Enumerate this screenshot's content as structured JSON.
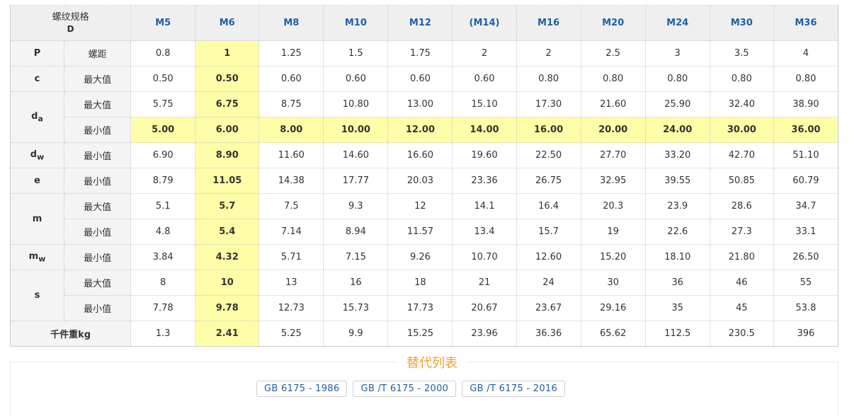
{
  "header": {
    "corner_top": "螺纹规格",
    "corner_bottom": "D",
    "sizes": [
      "M5",
      "M6",
      "M8",
      "M10",
      "M12",
      "(M14)",
      "M16",
      "M20",
      "M24",
      "M30",
      "M36"
    ]
  },
  "rows": [
    {
      "sym": "P",
      "sub": "",
      "label": "螺距",
      "values": [
        "0.8",
        "1",
        "1.25",
        "1.5",
        "1.75",
        "2",
        "2",
        "2.5",
        "3",
        "3.5",
        "4"
      ]
    },
    {
      "sym": "c",
      "sub": "",
      "label": "最大值",
      "values": [
        "0.50",
        "0.50",
        "0.60",
        "0.60",
        "0.60",
        "0.60",
        "0.80",
        "0.80",
        "0.80",
        "0.80",
        "0.80"
      ]
    },
    {
      "sym": "d",
      "sub": "a",
      "label": "最大值",
      "values": [
        "5.75",
        "6.75",
        "8.75",
        "10.80",
        "13.00",
        "15.10",
        "17.30",
        "21.60",
        "25.90",
        "32.40",
        "38.90"
      ]
    },
    {
      "sym": "",
      "sub": "",
      "label": "最小值",
      "values": [
        "5.00",
        "6.00",
        "8.00",
        "10.00",
        "12.00",
        "14.00",
        "16.00",
        "20.00",
        "24.00",
        "30.00",
        "36.00"
      ]
    },
    {
      "sym": "d",
      "sub": "w",
      "label": "最小值",
      "values": [
        "6.90",
        "8.90",
        "11.60",
        "14.60",
        "16.60",
        "19.60",
        "22.50",
        "27.70",
        "33.20",
        "42.70",
        "51.10"
      ]
    },
    {
      "sym": "e",
      "sub": "",
      "label": "最小值",
      "values": [
        "8.79",
        "11.05",
        "14.38",
        "17.77",
        "20.03",
        "23.36",
        "26.75",
        "32.95",
        "39.55",
        "50.85",
        "60.79"
      ]
    },
    {
      "sym": "m",
      "sub": "",
      "label": "最大值",
      "values": [
        "5.1",
        "5.7",
        "7.5",
        "9.3",
        "12",
        "14.1",
        "16.4",
        "20.3",
        "23.9",
        "28.6",
        "34.7"
      ]
    },
    {
      "sym": "",
      "sub": "",
      "label": "最小值",
      "values": [
        "4.8",
        "5.4",
        "7.14",
        "8.94",
        "11.57",
        "13.4",
        "15.7",
        "19",
        "22.6",
        "27.3",
        "33.1"
      ]
    },
    {
      "sym": "m",
      "sub": "w",
      "label": "最小值",
      "values": [
        "3.84",
        "4.32",
        "5.71",
        "7.15",
        "9.26",
        "10.70",
        "12.60",
        "15.20",
        "18.10",
        "21.80",
        "26.50"
      ]
    },
    {
      "sym": "s",
      "sub": "",
      "label": "最大值",
      "values": [
        "8",
        "10",
        "13",
        "16",
        "18",
        "21",
        "24",
        "30",
        "36",
        "46",
        "55"
      ]
    },
    {
      "sym": "",
      "sub": "",
      "label": "最小值",
      "values": [
        "7.78",
        "9.78",
        "12.73",
        "15.73",
        "17.73",
        "20.67",
        "23.67",
        "29.16",
        "35",
        "45",
        "53.8"
      ]
    }
  ],
  "weight": {
    "label": "千件重kg",
    "values": [
      "1.3",
      "2.41",
      "5.25",
      "9.9",
      "15.25",
      "23.96",
      "36.36",
      "65.62",
      "112.5",
      "230.5",
      "396"
    ]
  },
  "alternatives": {
    "title": "替代列表",
    "links": [
      "GB 6175 - 1986",
      "GB /T 6175 - 2000",
      "GB /T 6175 - 2016"
    ]
  },
  "colors": {
    "highlight": "#fffea8",
    "header_link": "#1f5fa8",
    "title_orange": "#f0a030"
  }
}
